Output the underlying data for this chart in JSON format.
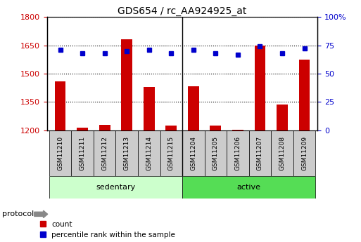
{
  "title": "GDS654 / rc_AA924925_at",
  "categories": [
    "GSM11210",
    "GSM11211",
    "GSM11212",
    "GSM11213",
    "GSM11214",
    "GSM11215",
    "GSM11204",
    "GSM11205",
    "GSM11206",
    "GSM11207",
    "GSM11208",
    "GSM11209"
  ],
  "bar_values": [
    1460,
    1215,
    1230,
    1680,
    1430,
    1225,
    1435,
    1225,
    1205,
    1650,
    1335,
    1575
  ],
  "percentile_values": [
    71,
    68,
    68,
    70,
    71,
    68,
    71,
    68,
    67,
    74,
    68,
    72
  ],
  "groups": [
    {
      "label": "sedentary",
      "start": 0,
      "end": 6,
      "color": "#ccffcc"
    },
    {
      "label": "active",
      "start": 6,
      "end": 12,
      "color": "#55dd55"
    }
  ],
  "protocol_label": "protocol",
  "ylim_left": [
    1200,
    1800
  ],
  "ylim_right": [
    0,
    100
  ],
  "yticks_left": [
    1200,
    1350,
    1500,
    1650,
    1800
  ],
  "yticks_right": [
    0,
    25,
    50,
    75,
    100
  ],
  "bar_color": "#cc0000",
  "dot_color": "#0000cc",
  "bg_color": "#ffffff",
  "left_tick_color": "#cc0000",
  "right_tick_color": "#0000cc",
  "tick_label_bg": "#cccccc",
  "legend_items": [
    {
      "label": "count",
      "color": "#cc0000"
    },
    {
      "label": "percentile rank within the sample",
      "color": "#0000cc"
    }
  ],
  "figsize": [
    5.13,
    3.45
  ],
  "dpi": 100
}
